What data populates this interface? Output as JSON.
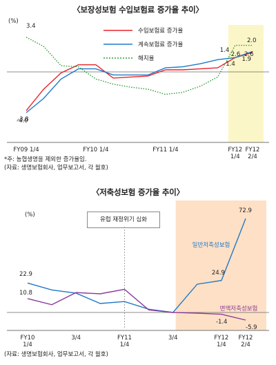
{
  "top": {
    "title": "〈보장성보험 수입보험료 증가율 추이〉",
    "unit": "(%)",
    "x_ticks": [
      {
        "label": "FY09 1/4"
      },
      {
        "label": "FY10 1/4"
      },
      {
        "label": "FY11 1/4"
      },
      {
        "label": "FY12\n1/4"
      },
      {
        "label": "FY12\n2/4"
      }
    ],
    "notes": [
      "*주: 농협생명을 제외한 증가율임.",
      "(자료: 생명보험회사, 업무보고서, 각 월호)"
    ]
  },
  "bottom": {
    "title": "〈저축성보험 증가율 추이〉",
    "unit": "(%)",
    "event_label": "유럽 재정위기 심화",
    "x_ticks": [
      {
        "label": "FY10\n1/4"
      },
      {
        "label": "3/4"
      },
      {
        "label": "FY11\n1/4"
      },
      {
        "label": "3/4"
      },
      {
        "label": "FY12\n1/4"
      },
      {
        "label": "FY12\n2/4"
      }
    ],
    "note": "(자료: 생명보험회사, 업무보고서, 각 월호)"
  },
  "chart_data": [
    {
      "type": "line",
      "title": "〈보장성보험 수입보험료 증가율 추이〉",
      "ylabel": "(%)",
      "x": [
        "FY09 1/4",
        "FY09 2/4",
        "FY09 3/4",
        "FY09 4/4",
        "FY10 1/4",
        "FY10 2/4",
        "FY10 3/4",
        "FY10 4/4",
        "FY11 1/4",
        "FY11 2/4",
        "FY11 3/4",
        "FY11 4/4",
        "FY12 1/4",
        "FY12 2/4"
      ],
      "ylim": [
        -4.8,
        4.2
      ],
      "highlight_range": [
        "FY12 1/4",
        "FY12 2/4"
      ],
      "series": [
        {
          "name": "수입보험료 증가율",
          "color": "#e8232a",
          "style": "solid",
          "values": [
            -3.8,
            -1.7,
            -0.1,
            0.7,
            0.7,
            -0.6,
            -0.5,
            -0.4,
            0.2,
            0.2,
            0.3,
            0.4,
            1.4,
            1.9
          ],
          "labels": {
            "0": "-3.8",
            "12": "1.4",
            "13": "1.9"
          }
        },
        {
          "name": "계속보험료 증가율",
          "color": "#1f78c8",
          "style": "solid",
          "values": [
            -4.0,
            -2.6,
            -0.7,
            0.3,
            0.3,
            -0.3,
            -0.3,
            -0.3,
            0.4,
            0.5,
            0.8,
            1.2,
            1.4,
            2.0
          ],
          "labels": {
            "0": "-4.0",
            "12": "1.4",
            "13": "2.0"
          }
        },
        {
          "name": "해지율",
          "color": "#2e9a3a",
          "style": "dotted",
          "values": [
            3.4,
            2.5,
            0.6,
            0.5,
            -0.7,
            -1.2,
            -1.5,
            -1.7,
            -2.2,
            -2.0,
            -1.4,
            -0.5,
            2.6,
            2.6
          ],
          "labels": {
            "0": "3.4",
            "12": "2.6",
            "13": "2.6"
          }
        }
      ]
    },
    {
      "type": "line",
      "title": "〈저축성보험 증가율 추이〉",
      "ylabel": "(%)",
      "x": [
        "FY10 1/4",
        "FY10 2/4",
        "FY10 3/4",
        "FY10 4/4",
        "FY11 1/4",
        "FY11 2/4",
        "FY11 3/4",
        "FY11 4/4",
        "FY12 1/4",
        "FY12 2/4"
      ],
      "ylim": [
        -12,
        85
      ],
      "annotation": "유럽 재정위기 심화",
      "highlight_range": [
        "FY11 3/4",
        "FY12 2/4"
      ],
      "series": [
        {
          "name": "일반저축성보험",
          "color": "#1f78c8",
          "style": "solid",
          "values": [
            22.9,
            17.5,
            15.0,
            7.0,
            8.5,
            2.5,
            0.0,
            22.0,
            24.9,
            72.9
          ],
          "labels": {
            "0": "22.9",
            "8": "24.9",
            "9": "72.9"
          }
        },
        {
          "name": "변액저축성보험",
          "color": "#8b3a9a",
          "style": "solid",
          "values": [
            10.8,
            6.0,
            15.5,
            14.5,
            18.0,
            2.0,
            0.0,
            -0.6,
            -1.4,
            -5.9
          ],
          "labels": {
            "0": "10.8",
            "8": "-1.4",
            "9": "-5.9"
          }
        }
      ]
    }
  ]
}
